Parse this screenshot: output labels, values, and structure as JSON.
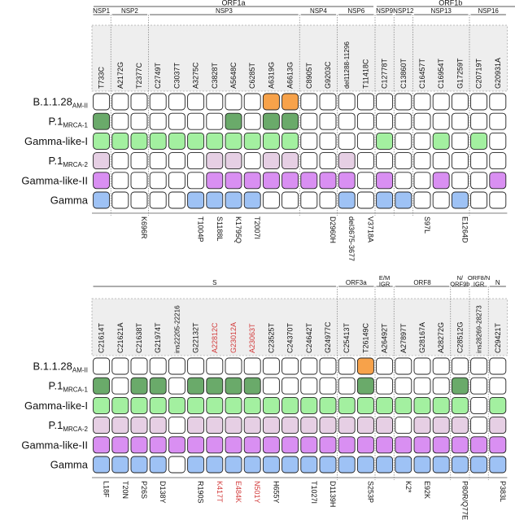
{
  "colors": {
    "orange": "#f7a24a",
    "dark_green": "#6aaa6a",
    "light_green": "#a3f0a0",
    "light_purple": "#e6cfe4",
    "purple": "#d98ff2",
    "blue": "#9ec2f5",
    "white": "#ffffff",
    "header_bg": "#eeeeee",
    "red_text": "#d23a3a"
  },
  "lineages": [
    {
      "name": "B.1.1.28",
      "sub": "AM-II"
    },
    {
      "name": "P.1",
      "sub": "MRCA-1"
    },
    {
      "name": "Gamma-like-I",
      "sub": ""
    },
    {
      "name": "P.1",
      "sub": "MRCA-2"
    },
    {
      "name": "Gamma-like-II",
      "sub": ""
    },
    {
      "name": "Gamma",
      "sub": ""
    }
  ],
  "panels": [
    {
      "top_groups": [
        {
          "label": "ORF1a",
          "start": 0,
          "end": 14
        },
        {
          "label": "ORF1b",
          "start": 15,
          "end": 22
        }
      ],
      "regions": [
        {
          "label": "NSP1",
          "start": 0,
          "end": 0
        },
        {
          "label": "NSP2",
          "start": 1,
          "end": 2
        },
        {
          "label": "NSP3",
          "start": 3,
          "end": 10
        },
        {
          "label": "NSP4",
          "start": 11,
          "end": 12
        },
        {
          "label": "NSP6",
          "start": 13,
          "end": 14
        },
        {
          "label": "NSP9",
          "start": 15,
          "end": 15
        },
        {
          "label": "NSP12",
          "start": 16,
          "end": 16
        },
        {
          "label": "NSP13",
          "start": 17,
          "end": 19
        },
        {
          "label": "NSP16",
          "start": 20,
          "end": 21
        }
      ],
      "columns": [
        {
          "mut": "T733C",
          "aa": "",
          "red": false
        },
        {
          "mut": "A2172G",
          "aa": "",
          "red": false
        },
        {
          "mut": "T2377C",
          "aa": "K696R",
          "red": false
        },
        {
          "mut": "C2749T",
          "aa": "",
          "red": false
        },
        {
          "mut": "C3037T",
          "aa": "",
          "red": false
        },
        {
          "mut": "A3275C",
          "aa": "T1004P",
          "red": false
        },
        {
          "mut": "C3828T",
          "aa": "S1188L",
          "red": false
        },
        {
          "mut": "A5648C",
          "aa": "K1795Q",
          "red": false
        },
        {
          "mut": "C6285T",
          "aa": "T2007I",
          "red": false
        },
        {
          "mut": "A6319G",
          "aa": "",
          "red": false
        },
        {
          "mut": "A6613G",
          "aa": "",
          "red": false
        },
        {
          "mut": "C8905T",
          "aa": "",
          "red": false
        },
        {
          "mut": "G9203C",
          "aa": "D2960H",
          "red": false
        },
        {
          "mut": "del11288-11296",
          "aa": "del3675-3677",
          "red": false
        },
        {
          "mut": "T11418C",
          "aa": "V3718A",
          "red": false
        },
        {
          "mut": "C12778T",
          "aa": "",
          "red": false
        },
        {
          "mut": "C13860T",
          "aa": "",
          "red": false
        },
        {
          "mut": "C16457T",
          "aa": "S97L",
          "red": false
        },
        {
          "mut": "C16954T",
          "aa": "",
          "red": false
        },
        {
          "mut": "G17259T",
          "aa": "E1264D",
          "red": false
        },
        {
          "mut": "C20719T",
          "aa": "",
          "red": false
        },
        {
          "mut": "G20931A",
          "aa": "",
          "red": false
        }
      ],
      "rows": [
        [
          "w",
          "w",
          "w",
          "w",
          "w",
          "w",
          "w",
          "w",
          "w",
          "o",
          "o",
          "w",
          "w",
          "w",
          "w",
          "w",
          "w",
          "w",
          "w",
          "w",
          "w",
          "w"
        ],
        [
          "dg",
          "w",
          "w",
          "w",
          "w",
          "w",
          "w",
          "dg",
          "w",
          "dg",
          "dg",
          "w",
          "w",
          "w",
          "w",
          "w",
          "w",
          "w",
          "w",
          "w",
          "w",
          "w"
        ],
        [
          "lg",
          "lg",
          "lg",
          "lg",
          "lg",
          "lg",
          "lg",
          "lg",
          "lg",
          "lg",
          "lg",
          "w",
          "w",
          "w",
          "w",
          "lg",
          "w",
          "w",
          "lg",
          "w",
          "lg",
          "w"
        ],
        [
          "lp",
          "w",
          "w",
          "w",
          "w",
          "w",
          "lp",
          "lp",
          "w",
          "lp",
          "lp",
          "w",
          "w",
          "lp",
          "w",
          "w",
          "w",
          "w",
          "w",
          "w",
          "w",
          "w"
        ],
        [
          "p",
          "w",
          "w",
          "w",
          "w",
          "w",
          "p",
          "p",
          "p",
          "p",
          "p",
          "p",
          "p",
          "p",
          "w",
          "p",
          "w",
          "w",
          "p",
          "w",
          "w",
          "p"
        ],
        [
          "b",
          "w",
          "w",
          "w",
          "w",
          "b",
          "b",
          "b",
          "b",
          "w",
          "w",
          "w",
          "w",
          "b",
          "w",
          "b",
          "b",
          "w",
          "w",
          "b",
          "w",
          "w"
        ]
      ]
    },
    {
      "top_groups": [],
      "regions": [
        {
          "label": "S",
          "start": 0,
          "end": 12
        },
        {
          "label": "ORF3a",
          "start": 13,
          "end": 14
        },
        {
          "label": "E/M IGR",
          "start": 15,
          "end": 15
        },
        {
          "label": "ORF8",
          "start": 16,
          "end": 18
        },
        {
          "label": "N/ ORF9b",
          "start": 19,
          "end": 19
        },
        {
          "label": "ORF8/N IGR",
          "start": 20,
          "end": 20
        },
        {
          "label": "N",
          "start": 21,
          "end": 21
        }
      ],
      "columns": [
        {
          "mut": "C21614T",
          "aa": "L18F",
          "red": false
        },
        {
          "mut": "C21621A",
          "aa": "T20N",
          "red": false
        },
        {
          "mut": "C21638T",
          "aa": "P26S",
          "red": false
        },
        {
          "mut": "G21974T",
          "aa": "D138Y",
          "red": false
        },
        {
          "mut": "ins22205-22216",
          "aa": "",
          "red": false
        },
        {
          "mut": "G22132T",
          "aa": "R190S",
          "red": false
        },
        {
          "mut": "A22812C",
          "aa": "K417T",
          "red": true
        },
        {
          "mut": "G23012A",
          "aa": "E484K",
          "red": true
        },
        {
          "mut": "A23063T",
          "aa": "N501Y",
          "red": true
        },
        {
          "mut": "C23525T",
          "aa": "H655Y",
          "red": false
        },
        {
          "mut": "C24370T",
          "aa": "",
          "red": false
        },
        {
          "mut": "C24642T",
          "aa": "T1027I",
          "red": false
        },
        {
          "mut": "G24977C",
          "aa": "D1139H",
          "red": false
        },
        {
          "mut": "C25413T",
          "aa": "",
          "red": false
        },
        {
          "mut": "T26149C",
          "aa": "S253P",
          "red": false
        },
        {
          "mut": "A26492T",
          "aa": "",
          "red": false
        },
        {
          "mut": "A27897T",
          "aa": "K2*",
          "red": false
        },
        {
          "mut": "G28167A",
          "aa": "E92K",
          "red": false
        },
        {
          "mut": "A28272G",
          "aa": "",
          "red": false
        },
        {
          "mut": "C28512G",
          "aa": "P80R/Q77E",
          "red": false
        },
        {
          "mut": "ins28269-28273",
          "aa": "",
          "red": false
        },
        {
          "mut": "C29421T",
          "aa": "P383L",
          "red": false
        }
      ],
      "rows": [
        [
          "w",
          "w",
          "w",
          "w",
          "w",
          "w",
          "w",
          "w",
          "w",
          "w",
          "w",
          "w",
          "w",
          "w",
          "o",
          "w",
          "w",
          "w",
          "w",
          "w",
          "w",
          "w"
        ],
        [
          "dg",
          "w",
          "dg",
          "dg",
          "w",
          "dg",
          "dg",
          "dg",
          "dg",
          "w",
          "w",
          "w",
          "w",
          "w",
          "dg",
          "w",
          "w",
          "w",
          "w",
          "dg",
          "w",
          "w"
        ],
        [
          "lg",
          "lg",
          "lg",
          "lg",
          "lg",
          "lg",
          "lg",
          "lg",
          "lg",
          "lg",
          "lg",
          "lg",
          "lg",
          "lg",
          "lg",
          "lg",
          "lg",
          "lg",
          "lg",
          "lg",
          "w",
          "lg"
        ],
        [
          "lp",
          "lp",
          "lp",
          "lp",
          "w",
          "lp",
          "lp",
          "lp",
          "lp",
          "lp",
          "lp",
          "lp",
          "lp",
          "lp",
          "lp",
          "lp",
          "w",
          "lp",
          "lp",
          "lp",
          "w",
          "lp"
        ],
        [
          "p",
          "p",
          "p",
          "p",
          "p",
          "p",
          "p",
          "p",
          "p",
          "p",
          "p",
          "p",
          "p",
          "p",
          "p",
          "p",
          "p",
          "p",
          "p",
          "p",
          "p",
          "p"
        ],
        [
          "b",
          "b",
          "b",
          "b",
          "w",
          "b",
          "b",
          "b",
          "b",
          "b",
          "b",
          "b",
          "b",
          "b",
          "b",
          "b",
          "b",
          "b",
          "b",
          "b",
          "b",
          "b"
        ]
      ]
    }
  ]
}
